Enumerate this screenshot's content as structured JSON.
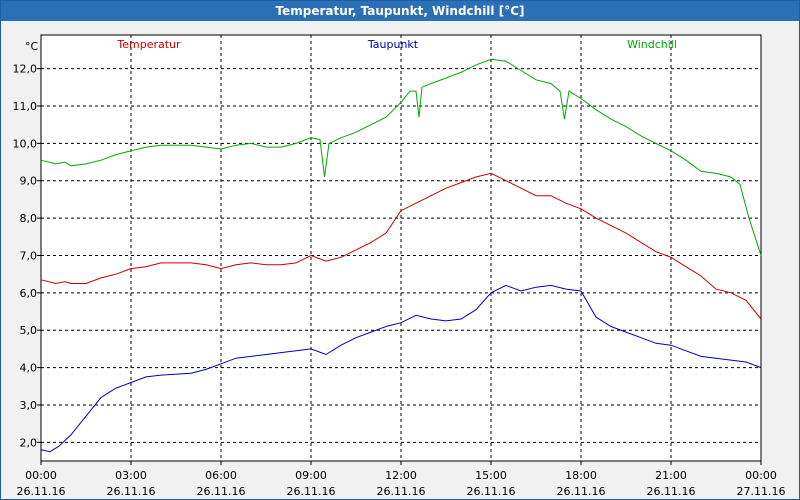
{
  "window": {
    "title": "Temperatur, Taupunkt, Windchill [°C]"
  },
  "colors": {
    "temperatur": "#cc0000",
    "taupunkt": "#0000bb",
    "windchill": "#00aa00"
  },
  "chart_data": {
    "type": "line",
    "title": "Temperatur, Taupunkt, Windchill [°C]",
    "yunit": "°C",
    "ylim": [
      1.5,
      12.9
    ],
    "yticks": [
      2.0,
      3.0,
      4.0,
      5.0,
      6.0,
      7.0,
      8.0,
      9.0,
      10.0,
      11.0,
      12.0
    ],
    "ytick_labels": [
      "2,0",
      "3,0",
      "4,0",
      "5,0",
      "6,0",
      "7,0",
      "8,0",
      "9,0",
      "10,0",
      "11,0",
      "12,0"
    ],
    "xlim": [
      0,
      24
    ],
    "xticks": [
      {
        "x": 0,
        "time": "00:00",
        "date": "26.11.16"
      },
      {
        "x": 3,
        "time": "03:00",
        "date": "26.11.16"
      },
      {
        "x": 6,
        "time": "06:00",
        "date": "26.11.16"
      },
      {
        "x": 9,
        "time": "09:00",
        "date": "26.11.16"
      },
      {
        "x": 12,
        "time": "12:00",
        "date": "26.11.16"
      },
      {
        "x": 15,
        "time": "15:00",
        "date": "26.11.16"
      },
      {
        "x": 18,
        "time": "18:00",
        "date": "26.11.16"
      },
      {
        "x": 21,
        "time": "21:00",
        "date": "26.11.16"
      },
      {
        "x": 24,
        "time": "00:00",
        "date": "27.11.16"
      }
    ],
    "grid": true,
    "legend": "top",
    "series": [
      {
        "name": "Temperatur",
        "color": "#cc0000",
        "x": [
          0,
          0.5,
          0.8,
          1,
          1.5,
          2,
          2.5,
          3,
          3.5,
          4,
          5,
          5.5,
          6,
          6.5,
          7,
          7.5,
          8,
          8.5,
          9,
          9.5,
          10,
          10.5,
          11,
          11.5,
          12,
          12.5,
          13,
          13.5,
          14,
          14.5,
          15,
          15.5,
          16,
          16.5,
          17,
          17.5,
          18,
          18.5,
          19,
          19.5,
          20,
          20.5,
          21,
          21.5,
          22,
          22.5,
          23,
          23.5,
          24
        ],
        "y": [
          6.35,
          6.25,
          6.3,
          6.25,
          6.25,
          6.4,
          6.5,
          6.65,
          6.7,
          6.8,
          6.8,
          6.75,
          6.65,
          6.75,
          6.8,
          6.75,
          6.75,
          6.8,
          7.0,
          6.85,
          6.95,
          7.15,
          7.35,
          7.6,
          8.2,
          8.4,
          8.6,
          8.8,
          8.95,
          9.1,
          9.2,
          9.0,
          8.8,
          8.6,
          8.6,
          8.4,
          8.25,
          8.0,
          7.8,
          7.6,
          7.35,
          7.1,
          6.95,
          6.7,
          6.45,
          6.1,
          6.0,
          5.8,
          5.3
        ]
      },
      {
        "name": "Taupunkt",
        "color": "#0000bb",
        "x": [
          0,
          0.3,
          0.6,
          1,
          1.5,
          2,
          2.5,
          3,
          3.5,
          4,
          5,
          5.5,
          6,
          6.5,
          7,
          8,
          8.5,
          9,
          9.5,
          10,
          10.5,
          11,
          11.5,
          12,
          12.5,
          13,
          13.5,
          14,
          14.5,
          15,
          15.5,
          16,
          16.5,
          17,
          17.5,
          18,
          18.5,
          19,
          19.5,
          20,
          20.5,
          21,
          21.5,
          22,
          22.5,
          23,
          23.5,
          24
        ],
        "y": [
          1.8,
          1.75,
          1.9,
          2.2,
          2.7,
          3.2,
          3.45,
          3.6,
          3.75,
          3.8,
          3.85,
          3.95,
          4.1,
          4.25,
          4.3,
          4.4,
          4.45,
          4.5,
          4.35,
          4.6,
          4.8,
          4.95,
          5.1,
          5.2,
          5.4,
          5.3,
          5.25,
          5.3,
          5.55,
          6.0,
          6.2,
          6.05,
          6.15,
          6.2,
          6.1,
          6.05,
          5.35,
          5.1,
          4.95,
          4.8,
          4.65,
          4.6,
          4.45,
          4.3,
          4.25,
          4.2,
          4.15,
          4.0
        ]
      },
      {
        "name": "Windchill",
        "color": "#00aa00",
        "x": [
          0,
          0.5,
          0.8,
          1,
          1.5,
          2,
          2.5,
          3,
          3.5,
          4,
          5,
          5.5,
          6,
          6.5,
          7,
          7.5,
          8,
          8.5,
          9,
          9.3,
          9.45,
          9.6,
          10,
          10.5,
          11,
          11.5,
          12,
          12.3,
          12.5,
          12.6,
          12.7,
          13,
          13.5,
          14,
          14.5,
          15,
          15.5,
          16,
          16.5,
          17,
          17.3,
          17.45,
          17.6,
          18,
          18.5,
          19,
          19.5,
          20,
          20.5,
          21,
          21.5,
          22,
          22.5,
          23,
          23.3,
          23.6,
          24
        ],
        "y": [
          9.55,
          9.45,
          9.5,
          9.4,
          9.45,
          9.55,
          9.7,
          9.8,
          9.9,
          9.95,
          9.95,
          9.9,
          9.85,
          9.95,
          10.0,
          9.9,
          9.9,
          10.0,
          10.15,
          10.1,
          9.1,
          10.0,
          10.15,
          10.3,
          10.5,
          10.7,
          11.1,
          11.4,
          11.4,
          10.7,
          11.5,
          11.6,
          11.75,
          11.9,
          12.1,
          12.25,
          12.2,
          11.95,
          11.7,
          11.6,
          11.4,
          10.65,
          11.4,
          11.2,
          10.9,
          10.65,
          10.45,
          10.2,
          10.0,
          9.8,
          9.55,
          9.25,
          9.2,
          9.1,
          8.9,
          8.0,
          7.0
        ]
      }
    ]
  }
}
